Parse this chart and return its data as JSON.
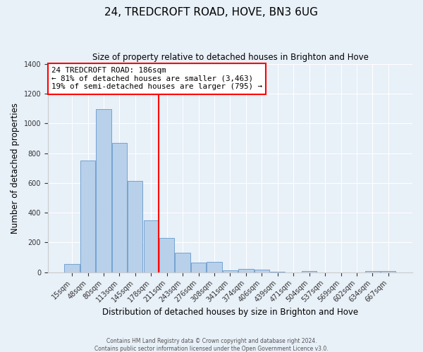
{
  "title": "24, TREDCROFT ROAD, HOVE, BN3 6UG",
  "subtitle": "Size of property relative to detached houses in Brighton and Hove",
  "xlabel": "Distribution of detached houses by size in Brighton and Hove",
  "ylabel": "Number of detached properties",
  "bar_labels": [
    "15sqm",
    "48sqm",
    "80sqm",
    "113sqm",
    "145sqm",
    "178sqm",
    "211sqm",
    "243sqm",
    "276sqm",
    "308sqm",
    "341sqm",
    "374sqm",
    "406sqm",
    "439sqm",
    "471sqm",
    "504sqm",
    "537sqm",
    "569sqm",
    "602sqm",
    "634sqm",
    "667sqm"
  ],
  "bar_values": [
    55,
    750,
    1095,
    870,
    615,
    350,
    230,
    130,
    65,
    70,
    15,
    25,
    20,
    5,
    0,
    10,
    0,
    0,
    0,
    10,
    10
  ],
  "bar_color": "#b8d0ea",
  "bar_edge_color": "#6699cc",
  "annotation_title": "24 TREDCROFT ROAD: 186sqm",
  "annotation_line1": "← 81% of detached houses are smaller (3,463)",
  "annotation_line2": "19% of semi-detached houses are larger (795) →",
  "ylim": [
    0,
    1400
  ],
  "yticks": [
    0,
    200,
    400,
    600,
    800,
    1000,
    1200,
    1400
  ],
  "background_color": "#e8f0f8",
  "plot_background": "#e8f0f8",
  "footer_line1": "Contains HM Land Registry data © Crown copyright and database right 2024.",
  "footer_line2": "Contains public sector information licensed under the Open Government Licence v3.0.",
  "red_line_x": 5.5
}
